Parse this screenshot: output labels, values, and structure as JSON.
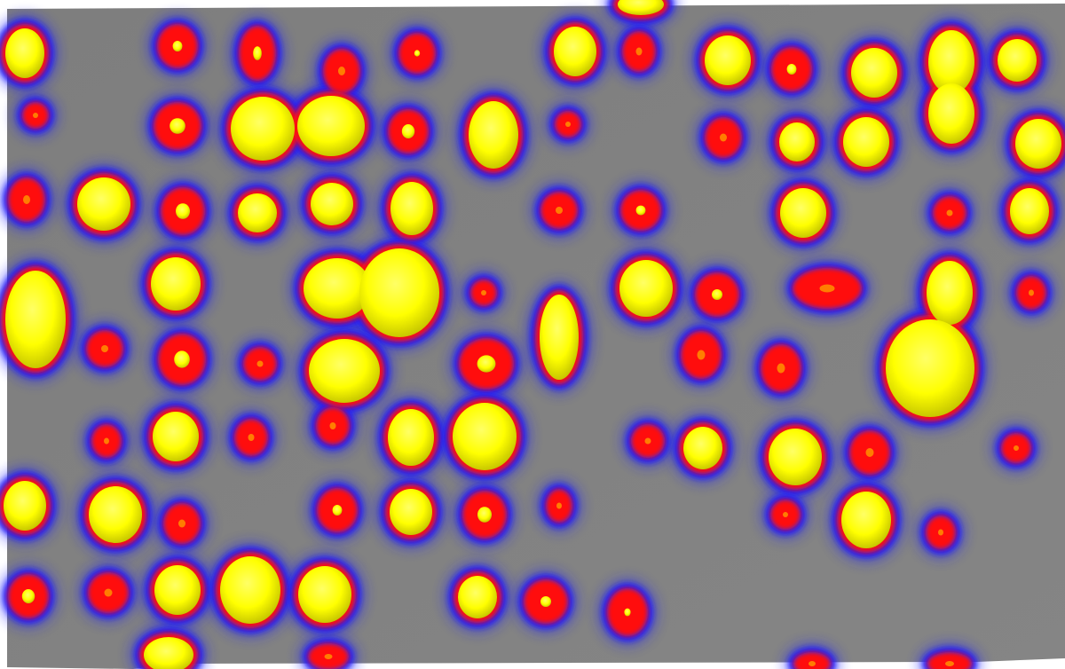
{
  "scene": {
    "type": "heatmap-3d-surface",
    "background_color": "#808080",
    "palette": {
      "halo": "#1a1aff",
      "ring": "#ff1010",
      "peak": "#ffff00",
      "peak_shadow": "#c8c800"
    }
  }
}
